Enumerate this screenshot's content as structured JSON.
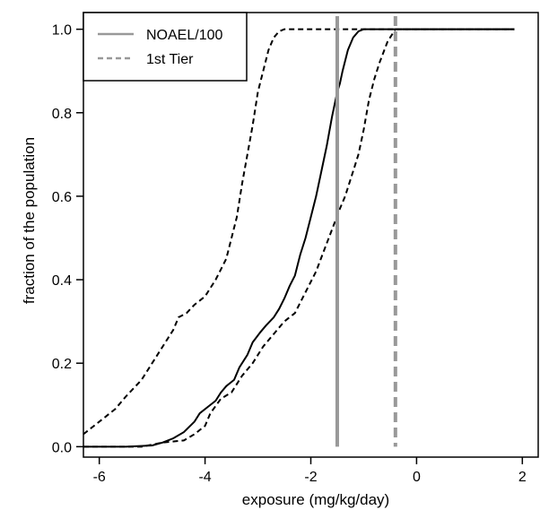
{
  "chart_data": {
    "type": "line",
    "title": "",
    "xlabel": "exposure (mg/kg/day)",
    "ylabel": "fraction of the population",
    "xlim": [
      -6.3,
      2.3
    ],
    "ylim": [
      -0.025,
      1.04
    ],
    "x_ticks": [
      "-6",
      "-4",
      "-2",
      "0",
      "2"
    ],
    "y_ticks": [
      "0.0",
      "0.2",
      "0.4",
      "0.6",
      "0.8",
      "1.0"
    ],
    "legend": {
      "position": "top-left",
      "entries": [
        {
          "label": "NOAEL/100",
          "style": "solid",
          "color": "#999999"
        },
        {
          "label": "1st Tier",
          "style": "dashed",
          "color": "#999999"
        }
      ]
    },
    "series": [
      {
        "style": "solid",
        "color": "#000000",
        "x": [
          -6.3,
          -5.5,
          -5.0,
          -4.8,
          -4.6,
          -4.4,
          -4.2,
          -4.1,
          -3.95,
          -3.8,
          -3.7,
          -3.6,
          -3.45,
          -3.35,
          -3.2,
          -3.1,
          -2.95,
          -2.85,
          -2.7,
          -2.6,
          -2.5,
          -2.4,
          -2.3,
          -2.2,
          -2.1,
          -2.0,
          -1.9,
          -1.8,
          -1.7,
          -1.6,
          -1.5,
          -1.45,
          -1.4,
          -1.3,
          -1.2,
          -1.1,
          -1.0,
          1.85
        ],
        "y": [
          0.0,
          0.0,
          0.003,
          0.01,
          0.02,
          0.035,
          0.06,
          0.08,
          0.095,
          0.11,
          0.13,
          0.145,
          0.16,
          0.19,
          0.22,
          0.25,
          0.275,
          0.29,
          0.31,
          0.33,
          0.355,
          0.385,
          0.41,
          0.46,
          0.5,
          0.55,
          0.6,
          0.66,
          0.72,
          0.79,
          0.85,
          0.87,
          0.9,
          0.95,
          0.98,
          0.995,
          1.0,
          1.0
        ]
      },
      {
        "style": "dashed",
        "color": "#000000",
        "x": [
          -6.3,
          -5.9,
          -5.7,
          -5.5,
          -5.2,
          -5.0,
          -4.8,
          -4.6,
          -4.5,
          -4.35,
          -4.2,
          -4.0,
          -3.8,
          -3.6,
          -3.4,
          -3.3,
          -3.2,
          -3.1,
          -3.0,
          -2.9,
          -2.8,
          -2.7,
          -2.6,
          -2.5,
          -2.4,
          1.85
        ],
        "y": [
          0.03,
          0.07,
          0.09,
          0.12,
          0.16,
          0.2,
          0.24,
          0.28,
          0.31,
          0.32,
          0.34,
          0.36,
          0.4,
          0.45,
          0.55,
          0.63,
          0.7,
          0.77,
          0.85,
          0.9,
          0.95,
          0.98,
          0.995,
          1.0,
          1.0,
          1.0
        ]
      },
      {
        "style": "dashed",
        "color": "#000000",
        "x": [
          -6.3,
          -5.2,
          -4.8,
          -4.4,
          -4.2,
          -4.0,
          -3.9,
          -3.7,
          -3.5,
          -3.3,
          -3.1,
          -2.9,
          -2.7,
          -2.5,
          -2.3,
          -2.1,
          -1.9,
          -1.75,
          -1.6,
          -1.45,
          -1.35,
          -1.2,
          -1.1,
          -1.0,
          -0.9,
          -0.8,
          -0.7,
          -0.55,
          -0.4,
          1.85
        ],
        "y": [
          0.0,
          0.0,
          0.01,
          0.015,
          0.03,
          0.05,
          0.08,
          0.115,
          0.13,
          0.17,
          0.2,
          0.24,
          0.27,
          0.3,
          0.32,
          0.37,
          0.42,
          0.47,
          0.52,
          0.57,
          0.6,
          0.66,
          0.7,
          0.76,
          0.83,
          0.88,
          0.92,
          0.97,
          1.0,
          1.0
        ]
      }
    ],
    "vlines": [
      {
        "x": -1.5,
        "style": "solid",
        "color": "#999999"
      },
      {
        "x": -0.4,
        "style": "dashed",
        "color": "#999999"
      }
    ]
  }
}
